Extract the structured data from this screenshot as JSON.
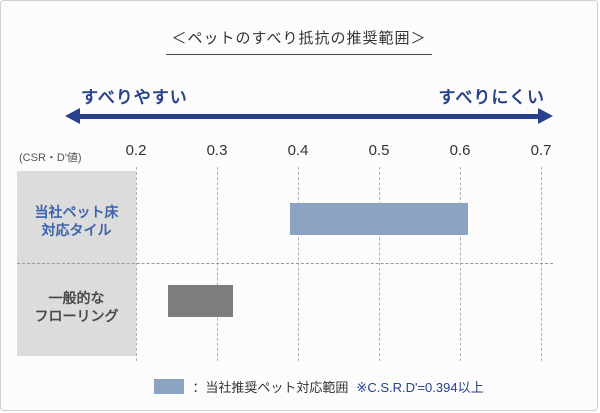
{
  "title": "＜ペットのすべり抵抗の推奨範囲＞",
  "arrow": {
    "left_label": "すべりやすい",
    "right_label": "すべりにくい",
    "color": "#27418c"
  },
  "axis": {
    "unit_label": "(CSR・D'値)",
    "ticks": [
      "0.2",
      "0.3",
      "0.4",
      "0.5",
      "0.6",
      "0.7"
    ]
  },
  "chart_data": {
    "type": "bar",
    "orientation": "horizontal",
    "title": "＜ペットのすべり抵抗の推奨範囲＞",
    "xlabel": "(CSR・D'値)",
    "xlim": [
      0.2,
      0.7
    ],
    "x_ticks": [
      0.2,
      0.3,
      0.4,
      0.5,
      0.6,
      0.7
    ],
    "grid": "dashed-vertical",
    "series": [
      {
        "key": "pet-tile",
        "name": "当社ペット床対応タイル",
        "label_lines": [
          "当社ペット床",
          "対応タイル"
        ],
        "label_color": "#3d63ad",
        "range": [
          0.39,
          0.61
        ],
        "color": "#8ca3c3"
      },
      {
        "key": "flooring",
        "name": "一般的なフローリング",
        "label_lines": [
          "一般的な",
          "フローリング"
        ],
        "label_color": "#4a4a4a",
        "range": [
          0.24,
          0.32
        ],
        "color": "#7d7d7d"
      }
    ]
  },
  "legend": {
    "swatch_color": "#8ca3c3",
    "label": "：当社推奨ペット対応範囲",
    "note": "※C.S.R.D'=0.394以上"
  },
  "colors": {
    "background": "#fcfcfc",
    "frame_border": "#cfcfcf",
    "category_column": "#dcdcdc",
    "gridline": "#b0b0b0",
    "accent_navy": "#27418c"
  }
}
